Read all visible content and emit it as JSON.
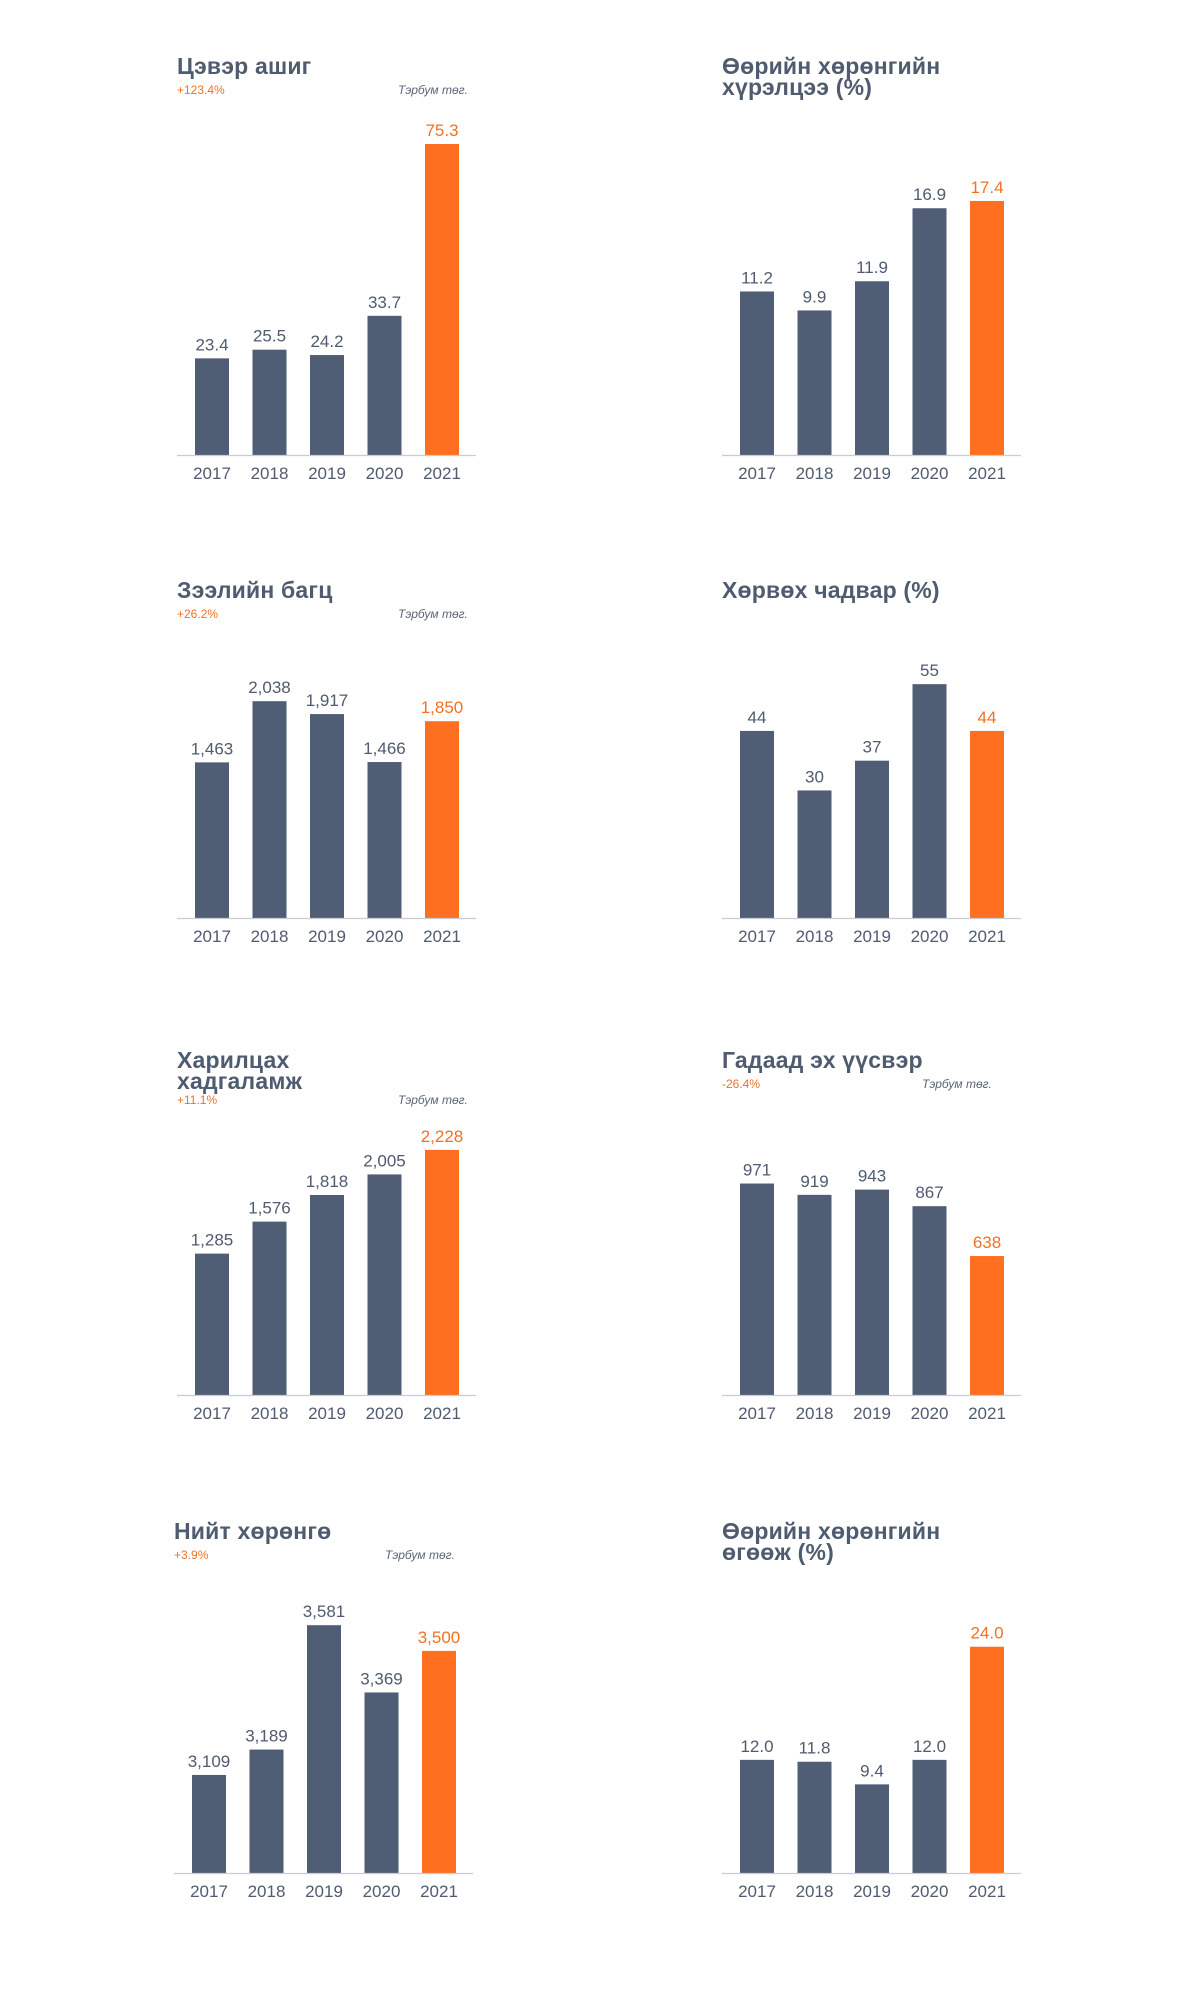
{
  "colors": {
    "bar": "#4f5d75",
    "highlight": "#ff6f20",
    "baseline": "#c9ccd2",
    "text": "#4f5b6f"
  },
  "chart_data": [
    {
      "type": "bar",
      "title": [
        "Цэвэр ашиг"
      ],
      "change": "+123.4%",
      "unit": "Тэрбум төг.",
      "categories": [
        "2017",
        "2018",
        "2019",
        "2020",
        "2021"
      ],
      "values": [
        23.4,
        25.5,
        24.2,
        33.7,
        75.3
      ],
      "labels": [
        "23.4",
        "25.5",
        "24.2",
        "33.7",
        "75.3"
      ],
      "highlight_index": 4,
      "ylim": [
        0,
        75.3
      ],
      "grid": false
    },
    {
      "type": "bar",
      "title": [
        "Өөрийн хөрөнгийн",
        "хүрэлцээ (%)"
      ],
      "change": "",
      "unit": "",
      "categories": [
        "2017",
        "2018",
        "2019",
        "2020",
        "2021"
      ],
      "values": [
        11.2,
        9.9,
        11.9,
        16.9,
        17.4
      ],
      "labels": [
        "11.2",
        "9.9",
        "11.9",
        "16.9",
        "17.4"
      ],
      "highlight_index": 4,
      "ylim": [
        0,
        21.3
      ],
      "grid": false
    },
    {
      "type": "bar",
      "title": [
        "Зээлийн багц"
      ],
      "change": "+26.2%",
      "unit": "Тэрбум төг.",
      "categories": [
        "2017",
        "2018",
        "2019",
        "2020",
        "2021"
      ],
      "values": [
        1463,
        2038,
        1917,
        1466,
        1850
      ],
      "labels": [
        "1,463",
        "2,038",
        "1,917",
        "1,466",
        "1,850"
      ],
      "highlight_index": 4,
      "ylim": [
        0,
        2350
      ],
      "grid": false
    },
    {
      "type": "bar",
      "title": [
        "Хөрвөх чадвар (%)"
      ],
      "change": "",
      "unit": "",
      "categories": [
        "2017",
        "2018",
        "2019",
        "2020",
        "2021"
      ],
      "values": [
        44,
        30,
        37,
        55,
        44
      ],
      "labels": [
        "44",
        "30",
        "37",
        "55",
        "44"
      ],
      "highlight_index": 4,
      "ylim": [
        0,
        58.8
      ],
      "grid": false
    },
    {
      "type": "bar",
      "title": [
        "Харилцах",
        "хадгаламж"
      ],
      "change": "+11.1%",
      "unit": "Тэрбум төг.",
      "categories": [
        "2017",
        "2018",
        "2019",
        "2020",
        "2021"
      ],
      "values": [
        1285,
        1576,
        1818,
        2005,
        2228
      ],
      "labels": [
        "1,285",
        "1,576",
        "1,818",
        "2,005",
        "2,228"
      ],
      "highlight_index": 4,
      "ylim": [
        0,
        2336
      ],
      "grid": false
    },
    {
      "type": "bar",
      "title": [
        "Гадаад эх үүсвэр"
      ],
      "change": "-26.4%",
      "unit": "Тэрбум төг.",
      "categories": [
        "2017",
        "2018",
        "2019",
        "2020",
        "2021"
      ],
      "values": [
        971,
        919,
        943,
        867,
        638
      ],
      "labels": [
        "971",
        "919",
        "943",
        "867",
        "638"
      ],
      "highlight_index": 4,
      "ylim": [
        0,
        1180
      ],
      "grid": false
    },
    {
      "type": "bar",
      "title": [
        "Нийт хөрөнгө"
      ],
      "change": "+3.9%",
      "unit": "Тэрбум төг.",
      "categories": [
        "2017",
        "2018",
        "2019",
        "2020",
        "2021"
      ],
      "values": [
        3109,
        3189,
        3581,
        3369,
        3500
      ],
      "labels": [
        "3,109",
        "3,189",
        "3,581",
        "3,369",
        "3,500"
      ],
      "highlight_index": 4,
      "ylim": [
        2800,
        3632
      ],
      "grid": false
    },
    {
      "type": "bar",
      "title": [
        "Өөрийн хөрөнгийн",
        "өгөөж (%)"
      ],
      "change": "",
      "unit": "",
      "categories": [
        "2017",
        "2018",
        "2019",
        "2020",
        "2021"
      ],
      "values": [
        12.0,
        11.8,
        9.4,
        12.0,
        24.0
      ],
      "labels": [
        "12.0",
        "11.8",
        "9.4",
        "12.0",
        "24.0"
      ],
      "highlight_index": 4,
      "ylim": [
        0,
        28.0
      ],
      "grid": false
    }
  ]
}
